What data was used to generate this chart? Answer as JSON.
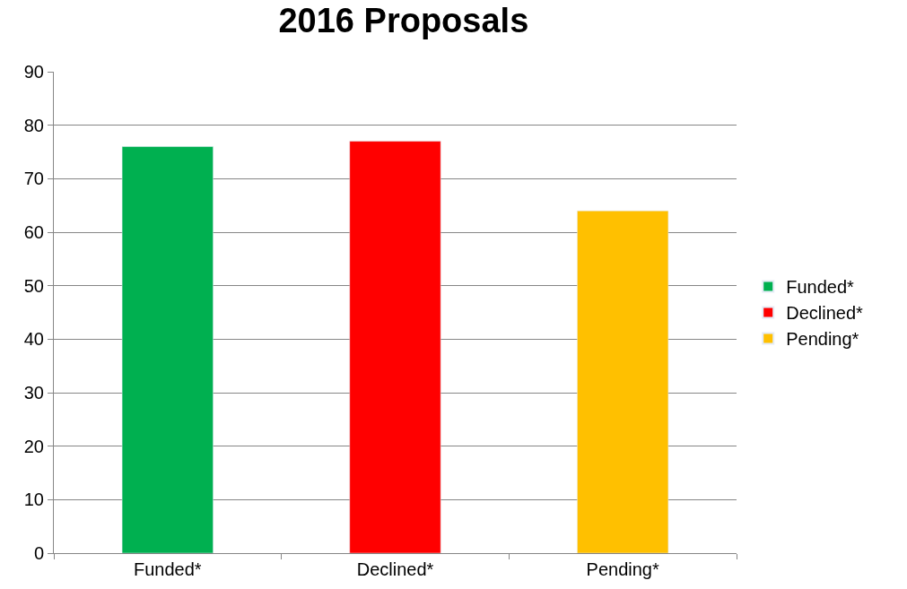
{
  "chart_data": {
    "type": "bar",
    "title": "2016 Proposals",
    "categories": [
      "Funded*",
      "Declined*",
      "Pending*"
    ],
    "series": [
      {
        "name": "Funded*",
        "color": "#00b050",
        "values": [
          76,
          null,
          null
        ]
      },
      {
        "name": "Declined*",
        "color": "#ff0000",
        "values": [
          null,
          77,
          null
        ]
      },
      {
        "name": "Pending*",
        "color": "#ffc000",
        "values": [
          null,
          null,
          64
        ]
      }
    ],
    "ylim": [
      0,
      90
    ],
    "yticks": [
      0,
      10,
      20,
      30,
      40,
      50,
      60,
      70,
      80,
      90
    ],
    "grid": "y",
    "legend": "right"
  }
}
